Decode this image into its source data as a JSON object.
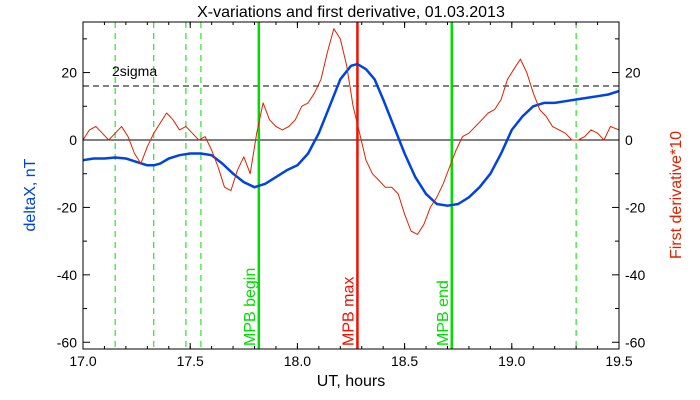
{
  "chart_data": {
    "type": "line",
    "title": "X-variations and first derivative, 01.03.2013",
    "xlabel": "UT, hours",
    "ylabel_left": "deltaX, nT",
    "ylabel_right": "First derivative*10",
    "xlim": [
      17.0,
      19.5
    ],
    "ylim": [
      -62,
      35
    ],
    "x_ticks": [
      17.0,
      17.5,
      18.0,
      18.5,
      19.0,
      19.5
    ],
    "x_tick_labels": [
      "17.0",
      "17.5",
      "18.0",
      "18.5",
      "19.0",
      "19.5"
    ],
    "y_ticks": [
      -60,
      -40,
      -20,
      0,
      20
    ],
    "y_tick_labels": [
      "-60",
      "-40",
      "-20",
      "0",
      "20"
    ],
    "colors": {
      "deltaX": "#0044dd",
      "derivative": "#dd2200",
      "markers_green": "#00dd00",
      "marker_red": "#ee1100"
    },
    "threshold": {
      "label": "2sigma",
      "value": 16
    },
    "series": [
      {
        "name": "deltaX, nT",
        "axis": "left",
        "x": [
          17.0,
          17.05,
          17.1,
          17.15,
          17.2,
          17.25,
          17.3,
          17.33,
          17.36,
          17.4,
          17.45,
          17.5,
          17.55,
          17.6,
          17.65,
          17.7,
          17.75,
          17.8,
          17.85,
          17.9,
          17.95,
          18.0,
          18.05,
          18.1,
          18.15,
          18.2,
          18.25,
          18.28,
          18.32,
          18.36,
          18.4,
          18.45,
          18.5,
          18.55,
          18.6,
          18.65,
          18.7,
          18.75,
          18.8,
          18.85,
          18.9,
          18.95,
          19.0,
          19.05,
          19.1,
          19.15,
          19.2,
          19.25,
          19.3,
          19.35,
          19.4,
          19.45,
          19.5
        ],
        "values": [
          -6,
          -5.5,
          -5.5,
          -5.2,
          -5.5,
          -6.5,
          -7.5,
          -7.5,
          -7,
          -5.5,
          -4.5,
          -4,
          -4,
          -4.5,
          -7,
          -10,
          -12.5,
          -14,
          -13,
          -11,
          -9,
          -7.5,
          -4,
          2,
          10,
          18,
          22,
          22.5,
          21,
          18,
          12,
          4,
          -4,
          -11,
          -16,
          -19,
          -19.5,
          -19,
          -17,
          -14,
          -10,
          -4,
          3,
          7,
          10,
          11,
          11,
          11.5,
          12,
          12.5,
          13,
          13.5,
          14.5
        ]
      },
      {
        "name": "First derivative*10",
        "axis": "right",
        "x": [
          17.0,
          17.03,
          17.06,
          17.09,
          17.12,
          17.15,
          17.18,
          17.21,
          17.24,
          17.27,
          17.3,
          17.33,
          17.36,
          17.39,
          17.42,
          17.45,
          17.48,
          17.51,
          17.54,
          17.57,
          17.6,
          17.63,
          17.66,
          17.69,
          17.72,
          17.75,
          17.78,
          17.81,
          17.84,
          17.87,
          17.9,
          17.93,
          17.96,
          17.99,
          18.02,
          18.05,
          18.08,
          18.11,
          18.14,
          18.17,
          18.2,
          18.23,
          18.26,
          18.29,
          18.32,
          18.35,
          18.38,
          18.41,
          18.44,
          18.47,
          18.5,
          18.53,
          18.56,
          18.59,
          18.62,
          18.65,
          18.68,
          18.71,
          18.74,
          18.77,
          18.8,
          18.83,
          18.86,
          18.89,
          18.92,
          18.95,
          18.98,
          19.01,
          19.04,
          19.07,
          19.1,
          19.13,
          19.16,
          19.19,
          19.22,
          19.25,
          19.28,
          19.31,
          19.34,
          19.37,
          19.4,
          19.43,
          19.46,
          19.5
        ],
        "values": [
          0,
          3,
          4,
          2,
          0,
          2,
          4,
          1,
          -4,
          -7,
          -2,
          2,
          5,
          8,
          6,
          3,
          4,
          2,
          0,
          1,
          -3,
          -8,
          -14,
          -15,
          -9,
          -5,
          -10,
          2,
          11,
          6,
          4,
          3,
          4,
          6,
          10,
          11,
          14,
          18,
          26,
          33,
          30,
          22,
          10,
          2,
          -6,
          -10,
          -12,
          -14,
          -14,
          -16,
          -22,
          -27,
          -28,
          -25,
          -20,
          -17,
          -13,
          -8,
          -3,
          1,
          2,
          4,
          6,
          8,
          9,
          12,
          18,
          21,
          24,
          20,
          14,
          9,
          7,
          4,
          3,
          2,
          0,
          0,
          1,
          3,
          2,
          0,
          4,
          3
        ]
      }
    ],
    "markers": [
      {
        "x": 17.82,
        "label": "MPB begin",
        "color": "#00dd00"
      },
      {
        "x": 18.28,
        "label": "MPB max",
        "color": "#ee1100"
      },
      {
        "x": 18.72,
        "label": "MPB end",
        "color": "#00dd00"
      }
    ],
    "dashed_vertical_lines": [
      17.15,
      17.33,
      17.48,
      17.55,
      19.3
    ]
  }
}
